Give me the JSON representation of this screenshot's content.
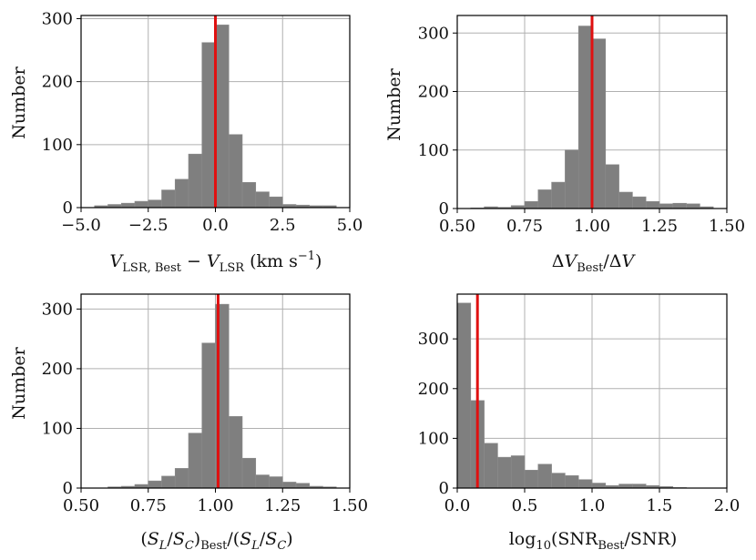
{
  "chart_data": [
    {
      "type": "bar",
      "id": "vlsr",
      "title": "",
      "xlabel": "V_LSR,Best − V_LSR (km s^−1)",
      "ylabel": "Number",
      "xlim": [
        -5.0,
        5.0
      ],
      "ylim": [
        0,
        305
      ],
      "grid": true,
      "xticks": [
        "−5.0",
        "−2.5",
        "0.0",
        "2.5",
        "5.0"
      ],
      "xtick_values": [
        -5.0,
        -2.5,
        0.0,
        2.5,
        5.0
      ],
      "yticks": [
        "0",
        "100",
        "200",
        "300"
      ],
      "ytick_values": [
        0,
        100,
        200,
        300
      ],
      "bin_edges": [
        -4.5,
        -4.0,
        -3.5,
        -3.0,
        -2.5,
        -2.0,
        -1.5,
        -1.0,
        -0.5,
        0.0,
        0.5,
        1.0,
        1.5,
        2.0,
        2.5,
        3.0,
        3.5,
        4.0,
        4.5
      ],
      "counts": [
        3,
        5,
        7,
        10,
        12,
        28,
        45,
        85,
        262,
        290,
        116,
        40,
        25,
        17,
        5,
        4,
        3,
        3
      ],
      "reference_line": 0.0,
      "reference_color": "#e01010",
      "bar_color": "#7f7f7f"
    },
    {
      "type": "bar",
      "id": "dv",
      "title": "",
      "xlabel": "ΔV_Best / ΔV",
      "ylabel": "Number",
      "xlim": [
        0.5,
        1.5
      ],
      "ylim": [
        0,
        330
      ],
      "grid": true,
      "xticks": [
        "0.50",
        "0.75",
        "1.00",
        "1.25",
        "1.50"
      ],
      "xtick_values": [
        0.5,
        0.75,
        1.0,
        1.25,
        1.5
      ],
      "yticks": [
        "0",
        "100",
        "200",
        "300"
      ],
      "ytick_values": [
        0,
        100,
        200,
        300
      ],
      "bin_edges": [
        0.55,
        0.6,
        0.65,
        0.7,
        0.75,
        0.8,
        0.85,
        0.9,
        0.95,
        1.0,
        1.05,
        1.1,
        1.15,
        1.2,
        1.25,
        1.3,
        1.35,
        1.4,
        1.45
      ],
      "counts": [
        1,
        3,
        2,
        5,
        12,
        32,
        45,
        100,
        312,
        290,
        75,
        28,
        20,
        12,
        8,
        9,
        8,
        3
      ],
      "reference_line": 1.0,
      "reference_color": "#e01010",
      "bar_color": "#7f7f7f"
    },
    {
      "type": "bar",
      "id": "slsc",
      "title": "",
      "xlabel": "(S_L/S_C)_Best / (S_L/S_C)",
      "ylabel": "Number",
      "xlim": [
        0.5,
        1.5
      ],
      "ylim": [
        0,
        325
      ],
      "grid": true,
      "xticks": [
        "0.50",
        "0.75",
        "1.00",
        "1.25",
        "1.50"
      ],
      "xtick_values": [
        0.5,
        0.75,
        1.0,
        1.25,
        1.5
      ],
      "yticks": [
        "0",
        "100",
        "200",
        "300"
      ],
      "ytick_values": [
        0,
        100,
        200,
        300
      ],
      "bin_edges": [
        0.6,
        0.65,
        0.7,
        0.75,
        0.8,
        0.85,
        0.9,
        0.95,
        1.0,
        1.05,
        1.1,
        1.15,
        1.2,
        1.25,
        1.3,
        1.35,
        1.4,
        1.45
      ],
      "counts": [
        2,
        3,
        6,
        12,
        20,
        33,
        92,
        243,
        308,
        120,
        50,
        22,
        19,
        10,
        8,
        3,
        2
      ],
      "reference_line": 1.01,
      "reference_color": "#e01010",
      "bar_color": "#7f7f7f"
    },
    {
      "type": "bar",
      "id": "snr",
      "title": "",
      "xlabel": "log10(SNR_Best / SNR)",
      "ylabel": "",
      "xlim": [
        0.0,
        2.0
      ],
      "ylim": [
        0,
        390
      ],
      "grid": true,
      "xticks": [
        "0.0",
        "0.5",
        "1.0",
        "1.5",
        "2.0"
      ],
      "xtick_values": [
        0.0,
        0.5,
        1.0,
        1.5,
        2.0
      ],
      "yticks": [
        "0",
        "100",
        "200",
        "300"
      ],
      "ytick_values": [
        0,
        100,
        200,
        300
      ],
      "bin_edges": [
        0.0,
        0.1,
        0.2,
        0.3,
        0.4,
        0.5,
        0.6,
        0.7,
        0.8,
        0.9,
        1.0,
        1.1,
        1.2,
        1.3,
        1.4,
        1.5,
        1.6,
        1.7
      ],
      "counts": [
        372,
        176,
        90,
        62,
        65,
        36,
        48,
        30,
        25,
        17,
        10,
        5,
        8,
        8,
        5,
        3,
        1
      ],
      "reference_line": 0.15,
      "reference_color": "#e01010",
      "bar_color": "#7f7f7f"
    }
  ]
}
